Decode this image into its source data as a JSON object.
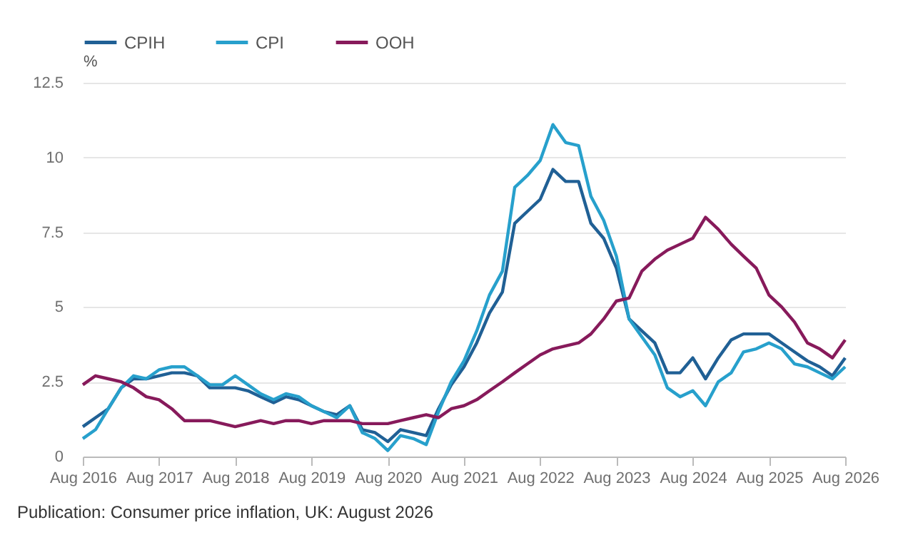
{
  "chart_data": {
    "type": "line",
    "ylabel": "%",
    "x": [
      "2016-08",
      "2016-10",
      "2016-12",
      "2017-02",
      "2017-04",
      "2017-06",
      "2017-08",
      "2017-10",
      "2017-12",
      "2018-02",
      "2018-04",
      "2018-06",
      "2018-08",
      "2018-10",
      "2018-12",
      "2019-02",
      "2019-04",
      "2019-06",
      "2019-08",
      "2019-10",
      "2019-12",
      "2020-02",
      "2020-04",
      "2020-06",
      "2020-08",
      "2020-10",
      "2020-12",
      "2021-02",
      "2021-04",
      "2021-06",
      "2021-08",
      "2021-10",
      "2021-12",
      "2022-02",
      "2022-04",
      "2022-06",
      "2022-08",
      "2022-10",
      "2022-12",
      "2023-02",
      "2023-04",
      "2023-06",
      "2023-08",
      "2023-10",
      "2023-12",
      "2024-02",
      "2024-04",
      "2024-06",
      "2024-08",
      "2024-10",
      "2024-12",
      "2025-02",
      "2025-04",
      "2025-06",
      "2025-08",
      "2025-10",
      "2025-12",
      "2026-02",
      "2026-04",
      "2026-06",
      "2026-08"
    ],
    "series": [
      {
        "name": "CPIH",
        "color": "#206095",
        "values": [
          1.0,
          1.3,
          1.6,
          2.3,
          2.6,
          2.6,
          2.7,
          2.8,
          2.8,
          2.7,
          2.3,
          2.3,
          2.3,
          2.2,
          2.0,
          1.8,
          2.0,
          1.9,
          1.7,
          1.5,
          1.4,
          1.7,
          0.9,
          0.8,
          0.5,
          0.9,
          0.8,
          0.7,
          1.6,
          2.4,
          3.0,
          3.8,
          4.8,
          5.5,
          7.8,
          8.2,
          8.6,
          9.6,
          9.2,
          9.2,
          7.8,
          7.3,
          6.3,
          4.6,
          4.2,
          3.8,
          2.8,
          2.8,
          3.3,
          2.6,
          3.3,
          3.9,
          4.1,
          4.1,
          4.1,
          3.8,
          3.5,
          3.2,
          3.0,
          2.7,
          3.3
        ]
      },
      {
        "name": "CPI",
        "color": "#27a0cc",
        "values": [
          0.6,
          0.9,
          1.6,
          2.3,
          2.7,
          2.6,
          2.9,
          3.0,
          3.0,
          2.7,
          2.4,
          2.4,
          2.7,
          2.4,
          2.1,
          1.9,
          2.1,
          2.0,
          1.7,
          1.5,
          1.3,
          1.7,
          0.8,
          0.6,
          0.2,
          0.7,
          0.6,
          0.4,
          1.5,
          2.5,
          3.2,
          4.2,
          5.4,
          6.2,
          9.0,
          9.4,
          9.9,
          11.1,
          10.5,
          10.4,
          8.7,
          7.9,
          6.7,
          4.6,
          4.0,
          3.4,
          2.3,
          2.0,
          2.2,
          1.7,
          2.5,
          2.8,
          3.5,
          3.6,
          3.8,
          3.6,
          3.1,
          3.0,
          2.8,
          2.6,
          3.0
        ]
      },
      {
        "name": "OOH",
        "color": "#871a5b",
        "values": [
          2.4,
          2.7,
          2.6,
          2.5,
          2.3,
          2.0,
          1.9,
          1.6,
          1.2,
          1.2,
          1.2,
          1.1,
          1.0,
          1.1,
          1.2,
          1.1,
          1.2,
          1.2,
          1.1,
          1.2,
          1.2,
          1.2,
          1.1,
          1.1,
          1.1,
          1.2,
          1.3,
          1.4,
          1.3,
          1.6,
          1.7,
          1.9,
          2.2,
          2.5,
          2.8,
          3.1,
          3.4,
          3.6,
          3.7,
          3.8,
          4.1,
          4.6,
          5.2,
          5.3,
          6.2,
          6.6,
          6.9,
          7.1,
          7.3,
          8.0,
          7.6,
          7.1,
          6.7,
          6.3,
          5.4,
          5.0,
          4.5,
          3.8,
          3.6,
          3.3,
          3.9
        ]
      }
    ],
    "xlim": [
      "2016-08",
      "2026-08"
    ],
    "xticks": [
      {
        "value": "2016-08",
        "label": "Aug 2016"
      },
      {
        "value": "2017-08",
        "label": "Aug 2017"
      },
      {
        "value": "2018-08",
        "label": "Aug 2018"
      },
      {
        "value": "2019-08",
        "label": "Aug 2019"
      },
      {
        "value": "2020-08",
        "label": "Aug 2020"
      },
      {
        "value": "2021-08",
        "label": "Aug 2021"
      },
      {
        "value": "2022-08",
        "label": "Aug 2022"
      },
      {
        "value": "2023-08",
        "label": "Aug 2023"
      },
      {
        "value": "2024-08",
        "label": "Aug 2024"
      },
      {
        "value": "2025-08",
        "label": "Aug 2025"
      },
      {
        "value": "2026-08",
        "label": "Aug 2026"
      }
    ],
    "ylim": [
      0,
      12.5
    ],
    "yticks": [
      0,
      2.5,
      5,
      7.5,
      10,
      12.5
    ],
    "grid": "y",
    "legend": "top",
    "line_style": "solid",
    "annotations": [
      "Publication: Consumer price inflation, UK: August 2026"
    ]
  }
}
